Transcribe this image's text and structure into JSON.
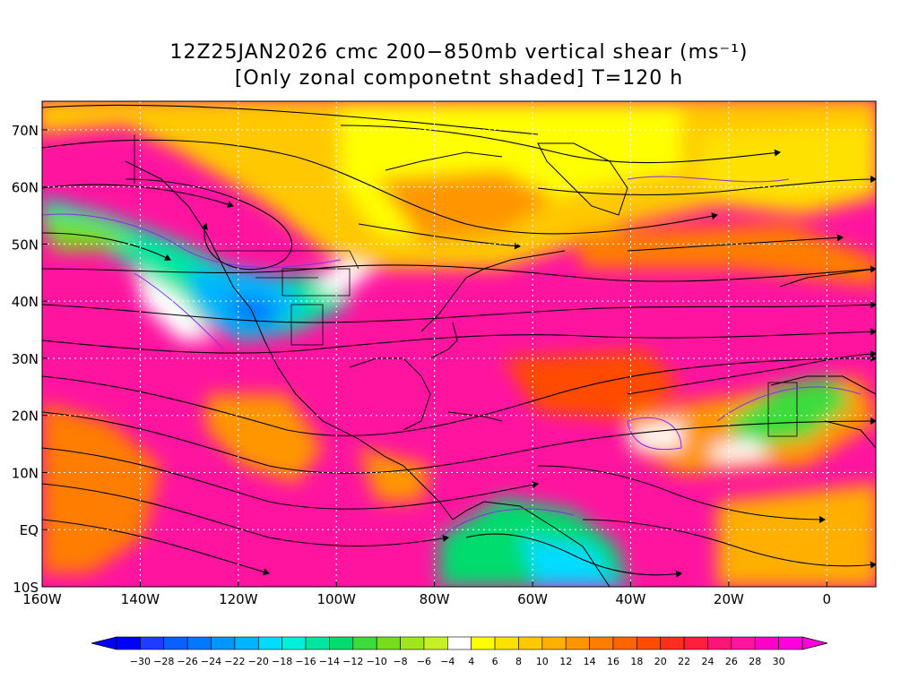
{
  "title": {
    "line1": "12Z25JAN2026 cmc 200−850mb vertical shear (ms⁻¹)",
    "line2": "[Only zonal componetnt shaded] T=120 h"
  },
  "map": {
    "lon_range": [
      -160,
      10
    ],
    "lat_range": [
      -10,
      75
    ],
    "lon_ticks": [
      {
        "lon": -160,
        "label": "160W"
      },
      {
        "lon": -140,
        "label": "140W"
      },
      {
        "lon": -120,
        "label": "120W"
      },
      {
        "lon": -100,
        "label": "100W"
      },
      {
        "lon": -80,
        "label": "80W"
      },
      {
        "lon": -60,
        "label": "60W"
      },
      {
        "lon": -40,
        "label": "40W"
      },
      {
        "lon": -20,
        "label": "20W"
      },
      {
        "lon": 0,
        "label": "0"
      }
    ],
    "lat_ticks": [
      {
        "lat": 70,
        "label": "70N"
      },
      {
        "lat": 60,
        "label": "60N"
      },
      {
        "lat": 50,
        "label": "50N"
      },
      {
        "lat": 40,
        "label": "40N"
      },
      {
        "lat": 30,
        "label": "30N"
      },
      {
        "lat": 20,
        "label": "20N"
      },
      {
        "lat": 10,
        "label": "10N"
      },
      {
        "lat": 0,
        "label": "EQ"
      },
      {
        "lat": -10,
        "label": "10S"
      }
    ],
    "grid": true,
    "streamlines": true,
    "zero_contour_color": "#8a2be2"
  },
  "colorbar": {
    "levels": [
      -30,
      -28,
      -26,
      -24,
      -22,
      -20,
      -18,
      -16,
      -14,
      -12,
      -10,
      -8,
      -6,
      -4,
      4,
      6,
      8,
      10,
      12,
      14,
      16,
      18,
      20,
      22,
      24,
      26,
      28,
      30
    ],
    "labels": [
      "−30",
      "−28",
      "−26",
      "−24",
      "−22",
      "−20",
      "−18",
      "−16",
      "−14",
      "−12",
      "−10",
      "−8",
      "−6",
      "−4",
      "4",
      "6",
      "8",
      "10",
      "12",
      "14",
      "16",
      "18",
      "20",
      "22",
      "24",
      "26",
      "28",
      "30"
    ],
    "colors": [
      "#0000ff",
      "#1e3cff",
      "#0a5fff",
      "#0078ff",
      "#0096ff",
      "#00b4ff",
      "#00dcff",
      "#00f0dc",
      "#00e6a0",
      "#00dc6e",
      "#3cdc3c",
      "#78dc1e",
      "#a0e61e",
      "#c8f028",
      "#ffffff",
      "#ffff00",
      "#ffe100",
      "#ffc800",
      "#ffaf00",
      "#ff9600",
      "#ff7d00",
      "#ff6400",
      "#ff4b00",
      "#ff2d1e",
      "#ff1e3c",
      "#ff1478",
      "#ff14a0",
      "#ff00c8",
      "#ff00dc"
    ]
  }
}
